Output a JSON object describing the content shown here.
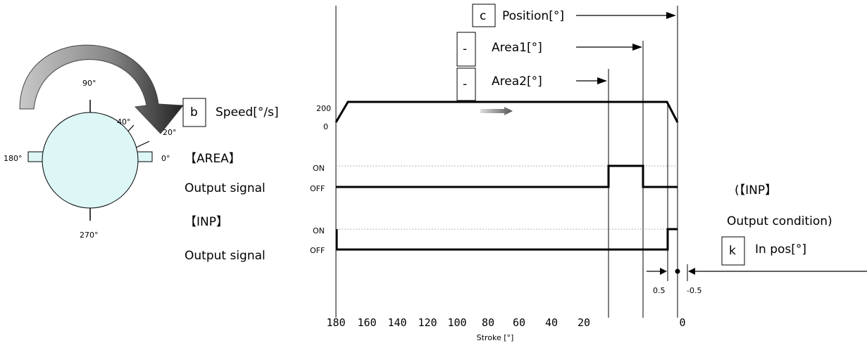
{
  "dial": {
    "deg_90": "90°",
    "deg_40": "40°",
    "deg_20": "20°",
    "deg_180": "180°",
    "deg_0": "0°",
    "deg_270": "270°"
  },
  "params": {
    "speed": {
      "box": "b",
      "label": "Speed[°/s]"
    },
    "position": {
      "box": "c",
      "label": "Position[°]"
    },
    "area1": {
      "box": "-",
      "label": "Area1[°]"
    },
    "area2": {
      "box": "-",
      "label": "Area2[°]"
    },
    "inpos": {
      "box": "k",
      "label": "In pos[°]"
    }
  },
  "speed_axis": {
    "top": "200",
    "bottom": "0"
  },
  "area_signal": {
    "title": "【AREA】",
    "sub": "Output signal",
    "on": "ON",
    "off": "OFF"
  },
  "inp_signal": {
    "title": "【INP】",
    "sub": "Output signal",
    "on": "ON",
    "off": "OFF"
  },
  "inp_condition": {
    "line1": "(【INP】",
    "line2": "Output condition)"
  },
  "tolerance": {
    "plus": "0.5",
    "minus": "-0.5"
  },
  "stroke_axis": {
    "ticks": [
      "180",
      "160",
      "140",
      "120",
      "100",
      "80",
      "60",
      "40",
      "20",
      "0"
    ],
    "label": "Stroke [°]"
  },
  "colors": {
    "disc_fill": "#ddf6f6",
    "line": "#000000",
    "guide": "#999999"
  }
}
